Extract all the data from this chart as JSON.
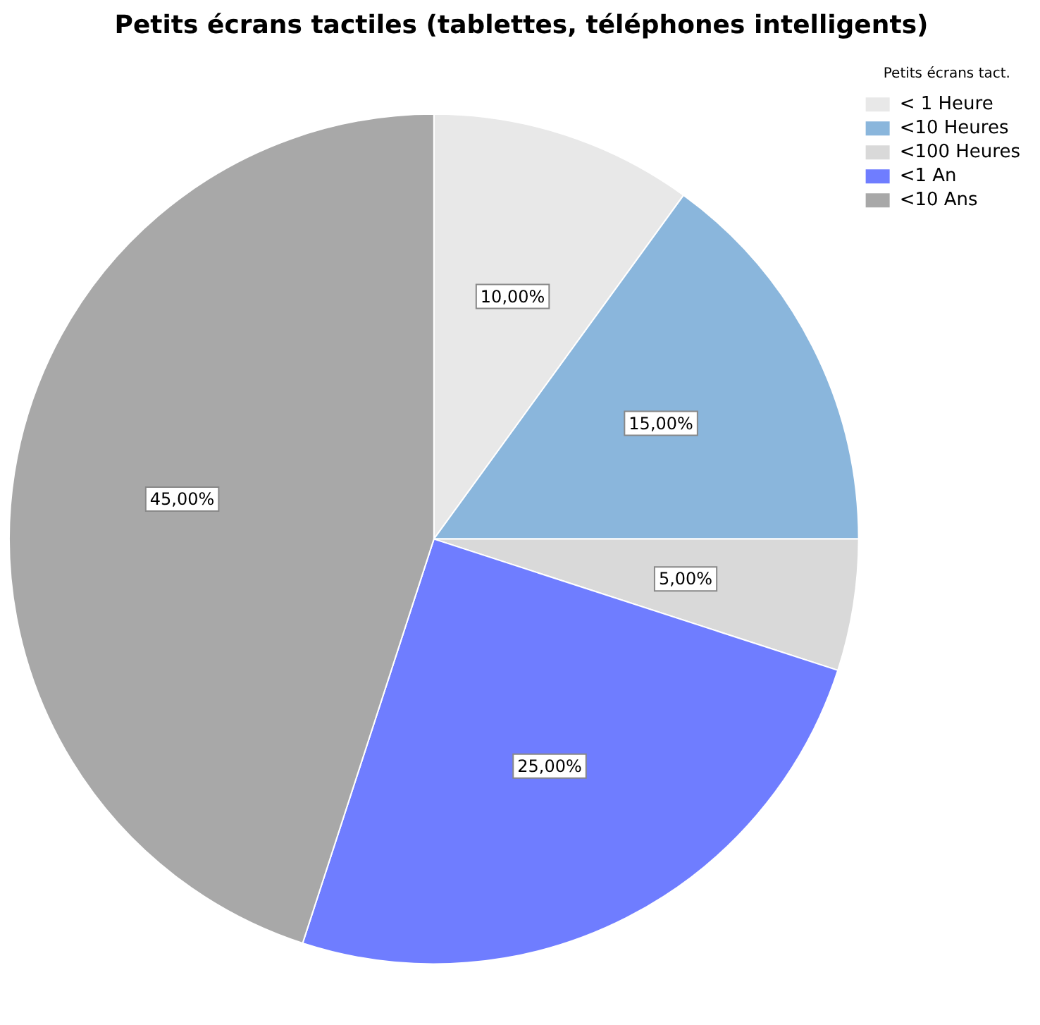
{
  "chart_data": {
    "type": "pie",
    "title": "Petits écrans tactiles (tablettes, téléphones intelligents)",
    "legend_title": "Petits écrans tact.",
    "legend": "top right",
    "categories": [
      "< 1 Heure",
      "<10 Heures",
      "<100 Heures",
      "<1 An",
      "<10 Ans"
    ],
    "values": [
      10,
      15,
      5,
      25,
      45
    ],
    "colors": [
      "#e8e8e8",
      "#8ab6dc",
      "#d9d9d9",
      "#6f7dff",
      "#a8a8a8"
    ],
    "value_labels": [
      "10,00%",
      "15,00%",
      "5,00%",
      "25,00%",
      "45,00%"
    ]
  }
}
